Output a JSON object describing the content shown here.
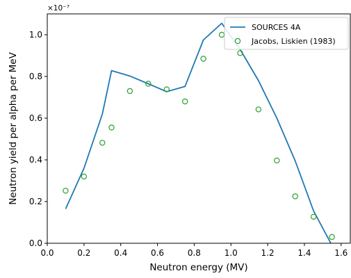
{
  "chart_data": {
    "type": "line",
    "xlabel": "Neutron energy (MV)",
    "ylabel": "Neutron yield per alpha per MeV",
    "y_scale_label": "×10⁻⁷",
    "xlim": [
      0.0,
      1.65
    ],
    "ylim": [
      0.0,
      1.1
    ],
    "x_ticks": [
      0.0,
      0.2,
      0.4,
      0.6,
      0.8,
      1.0,
      1.2,
      1.4,
      1.6
    ],
    "y_ticks": [
      0.0,
      0.2,
      0.4,
      0.6,
      0.8,
      1.0
    ],
    "grid": false,
    "legend_position": "top-right",
    "series": [
      {
        "name": "SOURCES 4A",
        "type": "line",
        "color": "#1f77b4",
        "x": [
          0.1,
          0.2,
          0.3,
          0.35,
          0.45,
          0.55,
          0.65,
          0.75,
          0.85,
          0.95,
          1.05,
          1.15,
          1.25,
          1.35,
          1.45,
          1.55
        ],
        "y": [
          0.165,
          0.36,
          0.62,
          0.828,
          0.802,
          0.765,
          0.727,
          0.752,
          0.975,
          1.055,
          0.93,
          0.78,
          0.6,
          0.395,
          0.155,
          -0.01
        ]
      },
      {
        "name": "Jacobs, Liskien (1983)",
        "type": "scatter",
        "color": "#2ca02c",
        "marker": "hollow-circle",
        "x": [
          0.1,
          0.2,
          0.3,
          0.35,
          0.45,
          0.55,
          0.65,
          0.75,
          0.85,
          0.95,
          1.05,
          1.15,
          1.25,
          1.35,
          1.45,
          1.55
        ],
        "y": [
          0.252,
          0.32,
          0.482,
          0.555,
          0.73,
          0.765,
          0.738,
          0.68,
          0.885,
          1.0,
          0.912,
          0.642,
          0.397,
          0.225,
          0.127,
          0.03
        ]
      }
    ]
  }
}
